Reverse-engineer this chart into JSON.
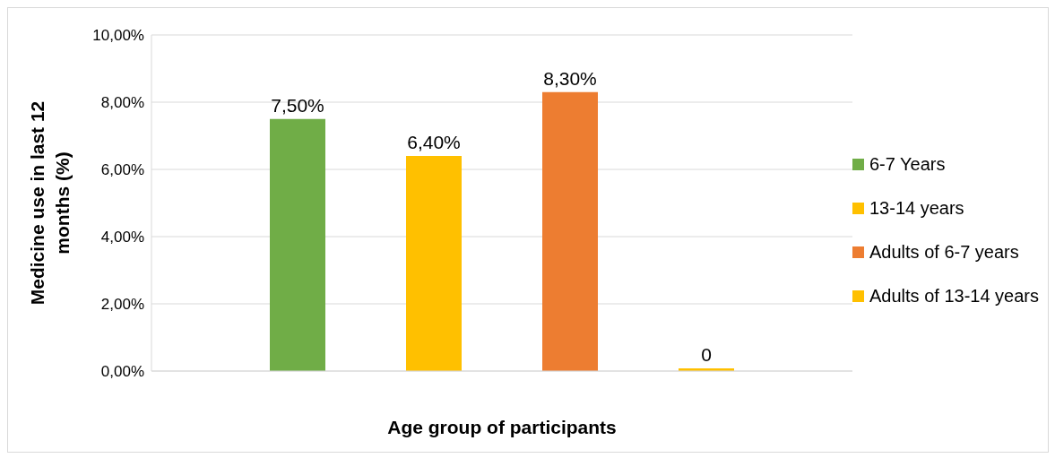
{
  "chart_data": {
    "type": "bar",
    "xlabel": "Age group of participants",
    "ylabel": "Medicine use in last 12 months (%)",
    "categories": [
      null
    ],
    "series": [
      {
        "name": "6-7 Years",
        "color": "#70ad47",
        "values": [
          7.5
        ],
        "value_labels": [
          "7,50%"
        ]
      },
      {
        "name": "13-14 years",
        "color": "#ffc000",
        "values": [
          6.4
        ],
        "value_labels": [
          "6,40%"
        ]
      },
      {
        "name": "Adults of 6-7 years",
        "color": "#ed7d31",
        "values": [
          8.3
        ],
        "value_labels": [
          "8,30%"
        ]
      },
      {
        "name": "Adults of 13-14 years",
        "color": "#ffc000",
        "values": [
          0
        ],
        "value_labels": [
          "0"
        ]
      }
    ],
    "ylim": [
      0,
      10
    ],
    "yticks": [
      {
        "value": 0,
        "label": "0,00%"
      },
      {
        "value": 2,
        "label": "2,00%"
      },
      {
        "value": 4,
        "label": "4,00%"
      },
      {
        "value": 6,
        "label": "6,00%"
      },
      {
        "value": 8,
        "label": "8,00%"
      },
      {
        "value": 10,
        "label": "10,00%"
      }
    ],
    "grid": "y",
    "legend": "right"
  }
}
